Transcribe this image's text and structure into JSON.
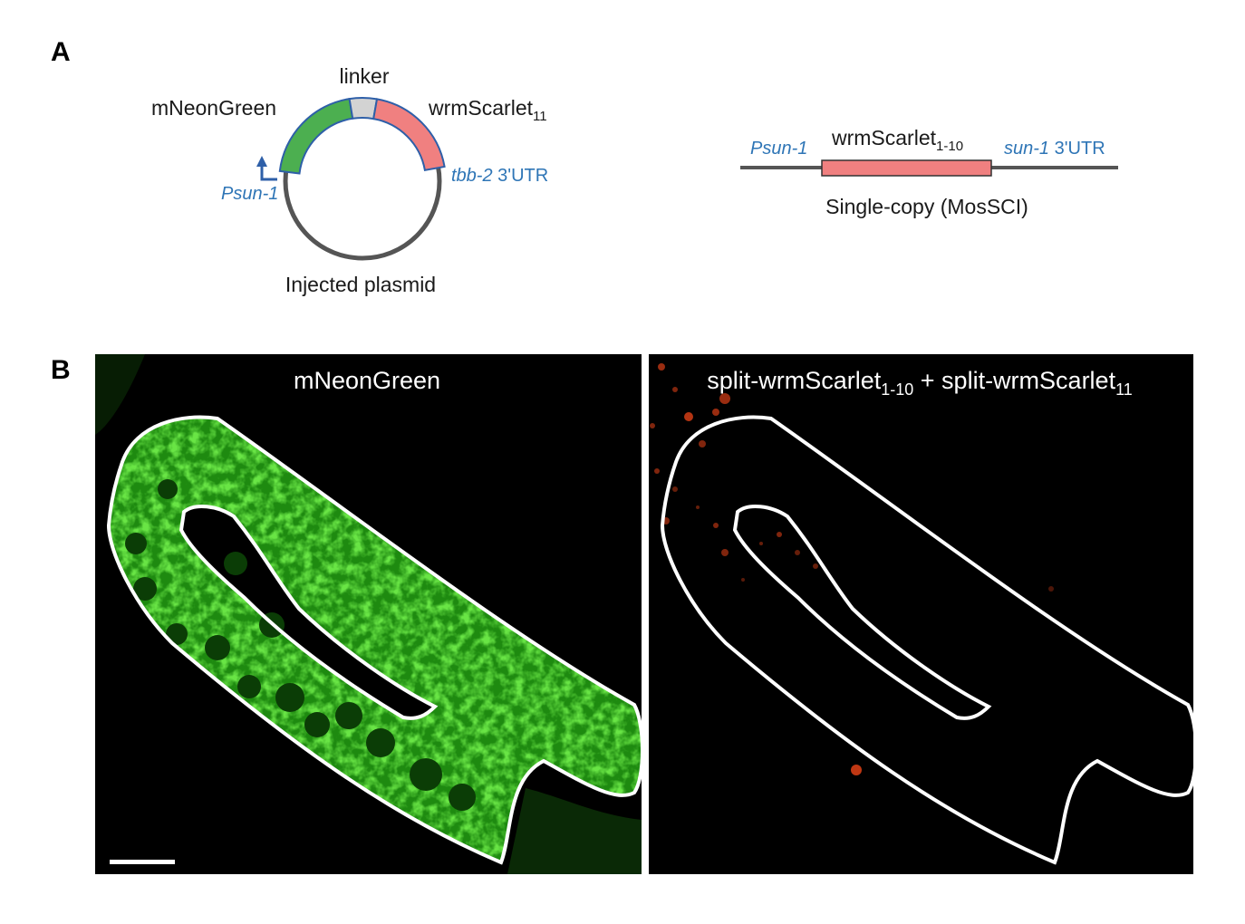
{
  "panel_a": {
    "letter": "A",
    "plasmid": {
      "label_mneongreen": "mNeonGreen",
      "label_linker": "linker",
      "label_wrmscarlet_base": "wrmScarlet",
      "label_wrmscarlet_sub": "11",
      "promoter": "Psun-1",
      "utr_italic": "tbb-2",
      "utr_rest": " 3'UTR",
      "caption": "Injected plasmid"
    },
    "single_copy": {
      "promoter": "Psun-1",
      "gene_base": "wrmScarlet",
      "gene_sub": "1-10",
      "utr_italic": "sun-1",
      "utr_rest": " 3'UTR",
      "caption": "Single-copy (MosSCI)"
    }
  },
  "panel_b": {
    "letter": "B",
    "left_title": "mNeonGreen",
    "right_title": {
      "part1": "split-wrmScarlet",
      "sub1": "1-10",
      "part2": " + split-wrmScarlet",
      "sub2": "11"
    }
  },
  "colors": {
    "green_segment": "#4caf50",
    "linker_segment": "#d3d3d3",
    "scarlet_segment": "#f08080",
    "outline_blue": "#2e5fa8",
    "label_blue": "#2e75b6",
    "backbone": "#555555",
    "micrograph_bg": "#000000",
    "green_signal": "#2fbf1a",
    "red_signal": "#ff4a1a"
  }
}
